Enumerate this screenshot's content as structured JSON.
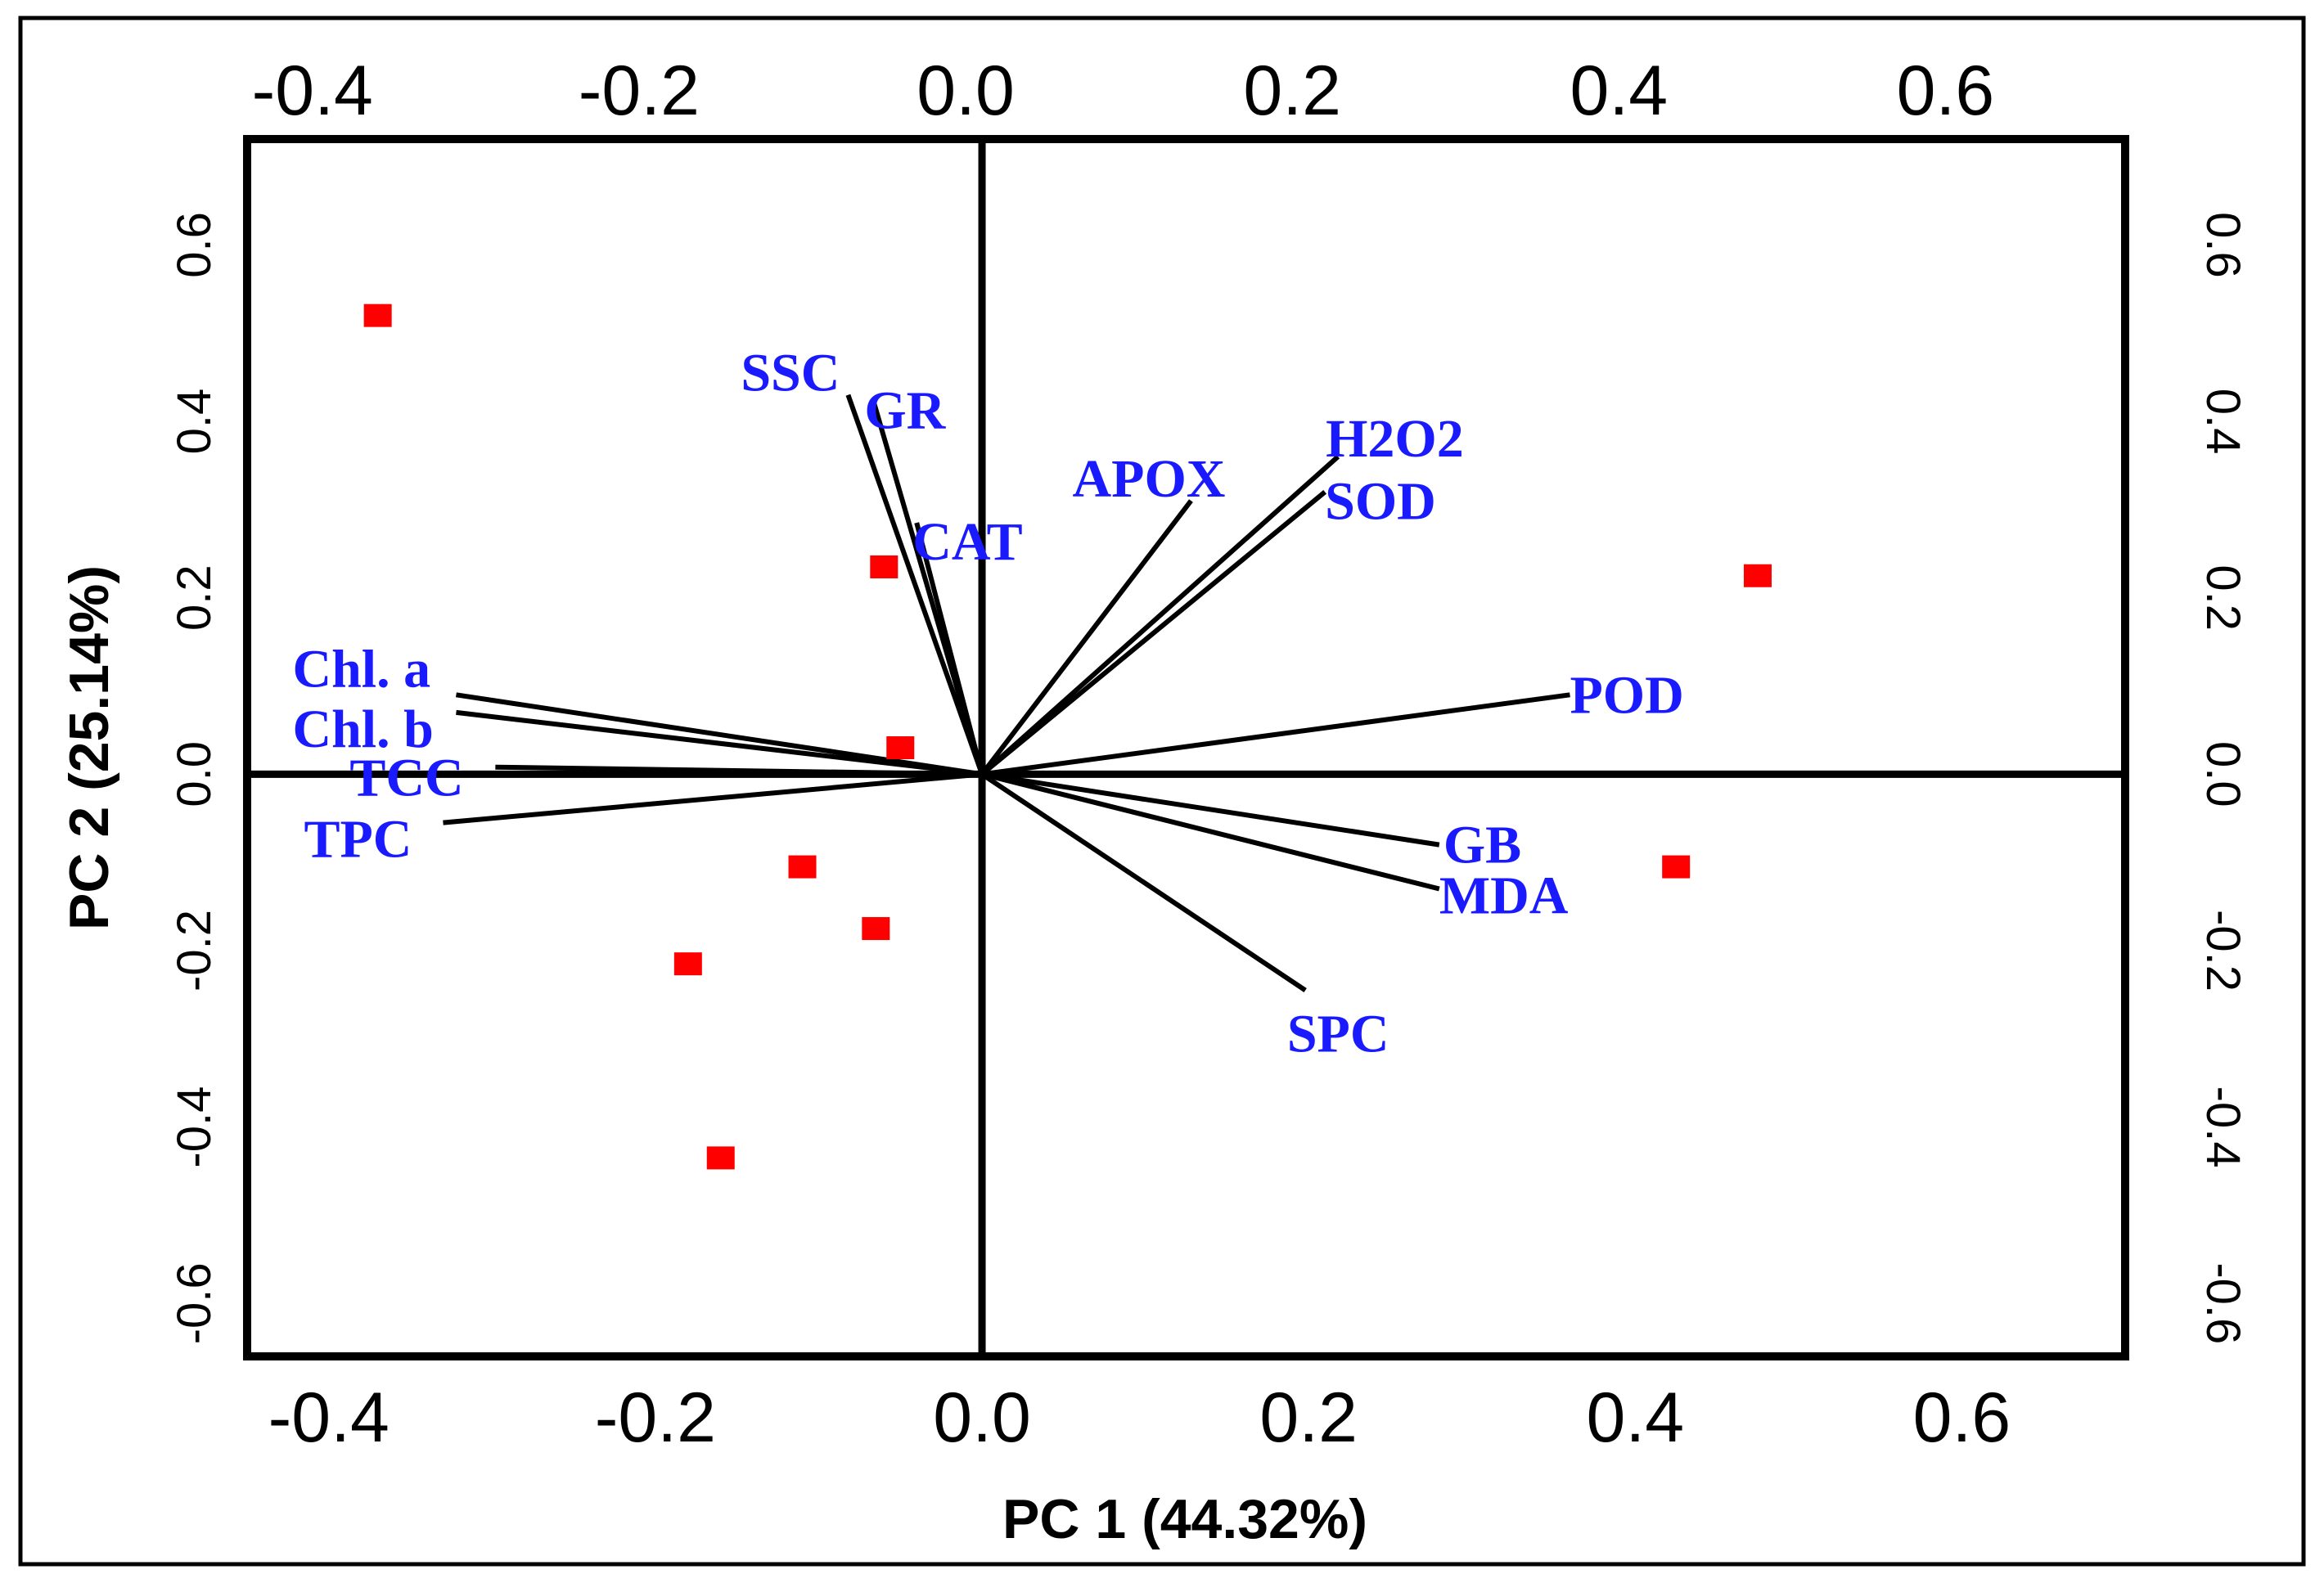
{
  "colors": {
    "variable_label": "#1a1aff",
    "score_marker": "#ff0000",
    "axis": "#000000"
  },
  "chart_data": {
    "type": "scatter",
    "subtype": "pca-biplot",
    "title": "",
    "xlabel": "PC 1 (44.32%)",
    "ylabel": "PC 2 (25.14%)",
    "xlim": [
      -0.45,
      0.7
    ],
    "ylim": [
      -0.66,
      0.72
    ],
    "grid": false,
    "x_ticks": [
      -0.4,
      -0.2,
      0.0,
      0.2,
      0.4,
      0.6
    ],
    "x_tick_labels": [
      "-0.4",
      "-0.2",
      "0.0",
      "0.2",
      "0.4",
      "0.6"
    ],
    "top_tick_labels": [
      "-0.4",
      "-0.2",
      "0.0",
      "0.2",
      "0.4",
      "0.6"
    ],
    "y_ticks": [
      -0.6,
      -0.4,
      -0.2,
      0.0,
      0.2,
      0.4,
      0.6
    ],
    "y_tick_labels": [
      "-0.6",
      "-0.4",
      "-0.2",
      "0.0",
      "0.2",
      "0.4",
      "0.6"
    ],
    "right_tick_labels": [
      "-0.6",
      "-0.4",
      "-0.2",
      "0.0",
      "0.2",
      "0.4",
      "0.6"
    ],
    "scores": [
      {
        "x": -0.37,
        "y": 0.52
      },
      {
        "x": -0.06,
        "y": 0.235
      },
      {
        "x": -0.05,
        "y": 0.03
      },
      {
        "x": -0.11,
        "y": -0.105
      },
      {
        "x": -0.065,
        "y": -0.175
      },
      {
        "x": -0.18,
        "y": -0.215
      },
      {
        "x": -0.16,
        "y": -0.435
      },
      {
        "x": 0.475,
        "y": 0.225
      },
      {
        "x": 0.425,
        "y": -0.105
      }
    ],
    "loadings": [
      {
        "name": "SSC",
        "x": -0.082,
        "y": 0.43
      },
      {
        "name": "GR",
        "x": -0.066,
        "y": 0.42
      },
      {
        "name": "CAT",
        "x": -0.04,
        "y": 0.285
      },
      {
        "name": "APOX",
        "x": 0.128,
        "y": 0.31
      },
      {
        "name": "H2O2",
        "x": 0.218,
        "y": 0.36
      },
      {
        "name": "SOD",
        "x": 0.21,
        "y": 0.32
      },
      {
        "name": "POD",
        "x": 0.36,
        "y": 0.09
      },
      {
        "name": "GB",
        "x": 0.28,
        "y": -0.08
      },
      {
        "name": "MDA",
        "x": 0.28,
        "y": -0.13
      },
      {
        "name": "SPC",
        "x": 0.198,
        "y": -0.245
      },
      {
        "name": "Chl. a",
        "x": -0.322,
        "y": 0.09
      },
      {
        "name": "Chl. b",
        "x": -0.322,
        "y": 0.07
      },
      {
        "name": "TCC",
        "x": -0.298,
        "y": 0.008
      },
      {
        "name": "TPC",
        "x": -0.33,
        "y": -0.055
      }
    ]
  }
}
